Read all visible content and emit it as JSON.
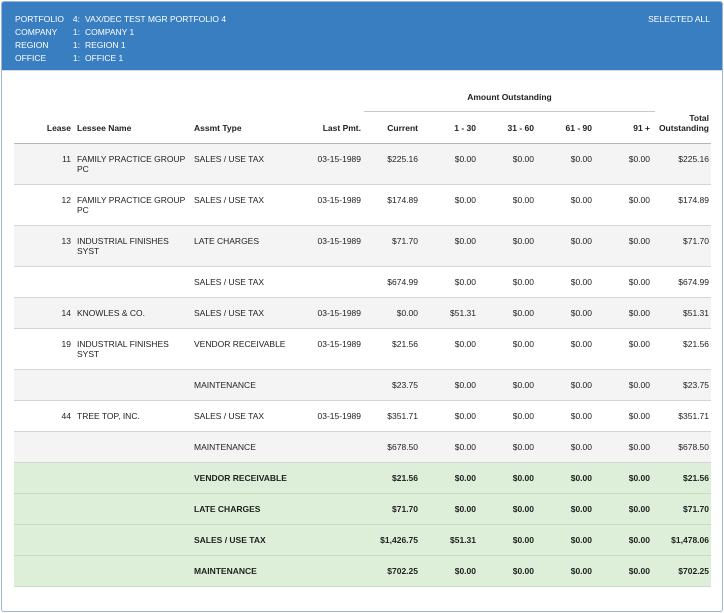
{
  "header": {
    "rows": [
      {
        "label": "PORTFOLIO",
        "num": "4:",
        "value": "VAX/DEC TEST MGR PORTFOLIO 4"
      },
      {
        "label": "COMPANY",
        "num": "1:",
        "value": "COMPANY 1"
      },
      {
        "label": "REGION",
        "num": "1:",
        "value": "REGION 1"
      },
      {
        "label": "OFFICE",
        "num": "1:",
        "value": "OFFICE 1"
      }
    ],
    "selection": "SELECTED ALL"
  },
  "table": {
    "group_header": "Amount Outstanding",
    "columns": {
      "lease": "Lease",
      "lessee": "Lessee Name",
      "type": "Assmt Type",
      "last_pmt": "Last Pmt.",
      "current": "Current",
      "d1_30": "1 - 30",
      "d31_60": "31 - 60",
      "d61_90": "61 - 90",
      "d91": "91 +",
      "total_line1": "Total",
      "total_line2": "Outstanding"
    },
    "rows": [
      {
        "lease": "11",
        "lessee": "FAMILY PRACTICE GROUP PC",
        "type": "SALES / USE TAX",
        "last_pmt": "03-15-1989",
        "current": "$225.16",
        "d1_30": "$0.00",
        "d31_60": "$0.00",
        "d61_90": "$0.00",
        "d91": "$0.00",
        "total": "$225.16"
      },
      {
        "lease": "12",
        "lessee": "FAMILY PRACTICE GROUP PC",
        "type": "SALES / USE TAX",
        "last_pmt": "03-15-1989",
        "current": "$174.89",
        "d1_30": "$0.00",
        "d31_60": "$0.00",
        "d61_90": "$0.00",
        "d91": "$0.00",
        "total": "$174.89"
      },
      {
        "lease": "13",
        "lessee": "INDUSTRIAL FINISHES SYST",
        "type": "LATE CHARGES",
        "last_pmt": "03-15-1989",
        "current": "$71.70",
        "d1_30": "$0.00",
        "d31_60": "$0.00",
        "d61_90": "$0.00",
        "d91": "$0.00",
        "total": "$71.70"
      },
      {
        "lease": "",
        "lessee": "",
        "type": "SALES / USE TAX",
        "last_pmt": "",
        "current": "$674.99",
        "d1_30": "$0.00",
        "d31_60": "$0.00",
        "d61_90": "$0.00",
        "d91": "$0.00",
        "total": "$674.99"
      },
      {
        "lease": "14",
        "lessee": "KNOWLES & CO.",
        "type": "SALES / USE TAX",
        "last_pmt": "03-15-1989",
        "current": "$0.00",
        "d1_30": "$51.31",
        "d31_60": "$0.00",
        "d61_90": "$0.00",
        "d91": "$0.00",
        "total": "$51.31"
      },
      {
        "lease": "19",
        "lessee": "INDUSTRIAL FINISHES SYST",
        "type": "VENDOR RECEIVABLE",
        "last_pmt": "03-15-1989",
        "current": "$21.56",
        "d1_30": "$0.00",
        "d31_60": "$0.00",
        "d61_90": "$0.00",
        "d91": "$0.00",
        "total": "$21.56"
      },
      {
        "lease": "",
        "lessee": "",
        "type": "MAINTENANCE",
        "last_pmt": "",
        "current": "$23.75",
        "d1_30": "$0.00",
        "d31_60": "$0.00",
        "d61_90": "$0.00",
        "d91": "$0.00",
        "total": "$23.75"
      },
      {
        "lease": "44",
        "lessee": "TREE TOP, INC.",
        "type": "SALES / USE TAX",
        "last_pmt": "03-15-1989",
        "current": "$351.71",
        "d1_30": "$0.00",
        "d31_60": "$0.00",
        "d61_90": "$0.00",
        "d91": "$0.00",
        "total": "$351.71"
      },
      {
        "lease": "",
        "lessee": "",
        "type": "MAINTENANCE",
        "last_pmt": "",
        "current": "$678.50",
        "d1_30": "$0.00",
        "d31_60": "$0.00",
        "d61_90": "$0.00",
        "d91": "$0.00",
        "total": "$678.50"
      }
    ],
    "summary": [
      {
        "type": "VENDOR RECEIVABLE",
        "current": "$21.56",
        "d1_30": "$0.00",
        "d31_60": "$0.00",
        "d61_90": "$0.00",
        "d91": "$0.00",
        "total": "$21.56"
      },
      {
        "type": "LATE CHARGES",
        "current": "$71.70",
        "d1_30": "$0.00",
        "d31_60": "$0.00",
        "d61_90": "$0.00",
        "d91": "$0.00",
        "total": "$71.70"
      },
      {
        "type": "SALES / USE TAX",
        "current": "$1,426.75",
        "d1_30": "$51.31",
        "d31_60": "$0.00",
        "d61_90": "$0.00",
        "d91": "$0.00",
        "total": "$1,478.06"
      },
      {
        "type": "MAINTENANCE",
        "current": "$702.25",
        "d1_30": "$0.00",
        "d31_60": "$0.00",
        "d61_90": "$0.00",
        "d91": "$0.00",
        "total": "$702.25"
      }
    ]
  }
}
